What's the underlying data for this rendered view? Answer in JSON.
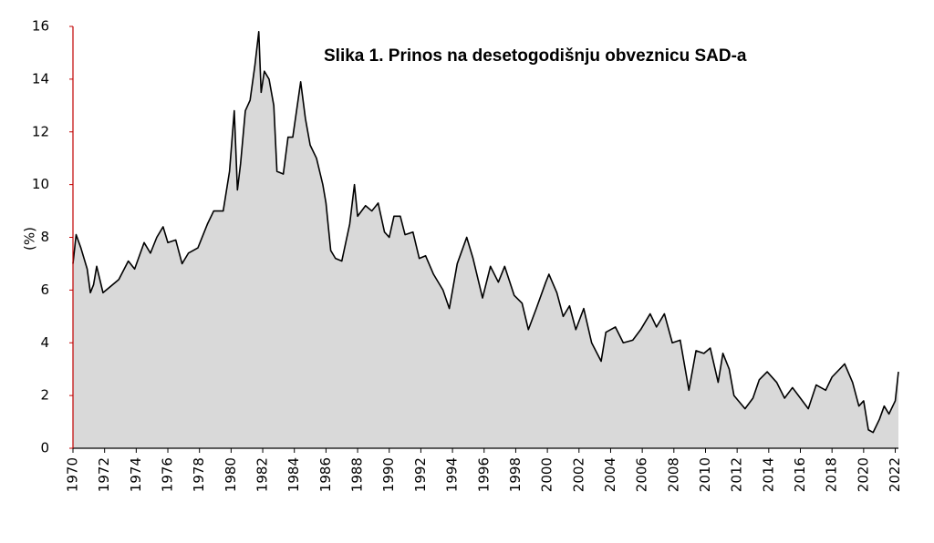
{
  "chart_data": {
    "type": "area",
    "title": "Slika 1. Prinos na desetogodišnju obveznicu SAD-a",
    "ylabel": "(%)",
    "x": [
      1970,
      1970.2,
      1970.5,
      1970.9,
      1971.1,
      1971.3,
      1971.5,
      1971.9,
      1972.3,
      1972.9,
      1973.5,
      1973.9,
      1974.5,
      1974.9,
      1975.3,
      1975.7,
      1976.0,
      1976.5,
      1976.9,
      1977.3,
      1977.9,
      1978.5,
      1978.9,
      1979.5,
      1979.9,
      1980.2,
      1980.4,
      1980.6,
      1980.9,
      1981.2,
      1981.5,
      1981.75,
      1981.9,
      1982.1,
      1982.4,
      1982.7,
      1982.9,
      1983.3,
      1983.6,
      1983.9,
      1984.4,
      1984.7,
      1985.0,
      1985.4,
      1985.8,
      1986.0,
      1986.3,
      1986.6,
      1987.0,
      1987.5,
      1987.8,
      1988.0,
      1988.5,
      1988.9,
      1989.3,
      1989.7,
      1990.0,
      1990.3,
      1990.7,
      1991.0,
      1991.5,
      1991.9,
      1992.3,
      1992.8,
      1993.4,
      1993.8,
      1994.3,
      1994.9,
      1995.3,
      1995.9,
      1996.4,
      1996.9,
      1997.3,
      1997.9,
      1998.4,
      1998.8,
      1999.3,
      1999.9,
      2000.1,
      2000.6,
      2001.0,
      2001.4,
      2001.8,
      2002.3,
      2002.8,
      2003.4,
      2003.7,
      2004.3,
      2004.8,
      2005.4,
      2005.9,
      2006.5,
      2006.9,
      2007.4,
      2007.9,
      2008.4,
      2008.95,
      2009.4,
      2009.9,
      2010.3,
      2010.8,
      2011.1,
      2011.5,
      2011.8,
      2012.5,
      2013.0,
      2013.4,
      2013.9,
      2014.5,
      2015.0,
      2015.5,
      2016.0,
      2016.5,
      2017.0,
      2017.6,
      2018.0,
      2018.8,
      2019.3,
      2019.7,
      2020.0,
      2020.3,
      2020.6,
      2021.0,
      2021.3,
      2021.6,
      2022.0,
      2022.2
    ],
    "values": [
      7.0,
      8.1,
      7.6,
      6.8,
      5.9,
      6.2,
      6.9,
      5.9,
      6.1,
      6.4,
      7.1,
      6.8,
      7.8,
      7.4,
      8.0,
      8.4,
      7.8,
      7.9,
      7.0,
      7.4,
      7.6,
      8.5,
      9.0,
      9.0,
      10.5,
      12.8,
      9.8,
      10.8,
      12.8,
      13.2,
      14.5,
      15.8,
      13.5,
      14.3,
      14.0,
      13.0,
      10.5,
      10.4,
      11.8,
      11.8,
      13.9,
      12.5,
      11.5,
      11.0,
      10.0,
      9.3,
      7.5,
      7.2,
      7.1,
      8.5,
      10.0,
      8.8,
      9.2,
      9.0,
      9.3,
      8.2,
      8.0,
      8.8,
      8.8,
      8.1,
      8.2,
      7.2,
      7.3,
      6.6,
      6.0,
      5.3,
      7.0,
      8.0,
      7.2,
      5.7,
      6.9,
      6.3,
      6.9,
      5.8,
      5.5,
      4.5,
      5.3,
      6.3,
      6.6,
      5.9,
      5.0,
      5.4,
      4.5,
      5.3,
      4.0,
      3.3,
      4.4,
      4.6,
      4.0,
      4.1,
      4.5,
      5.1,
      4.6,
      5.1,
      4.0,
      4.1,
      2.2,
      3.7,
      3.6,
      3.8,
      2.5,
      3.6,
      3.0,
      2.0,
      1.5,
      1.9,
      2.6,
      2.9,
      2.5,
      1.9,
      2.3,
      1.9,
      1.5,
      2.4,
      2.2,
      2.7,
      3.2,
      2.5,
      1.6,
      1.8,
      0.7,
      0.6,
      1.1,
      1.6,
      1.3,
      1.8,
      2.9
    ],
    "color": "#000000",
    "fill": "#d9d9d9",
    "xlim": [
      1970,
      2022.2
    ],
    "ylim": [
      0,
      16
    ],
    "xticks": [
      1970,
      1972,
      1974,
      1976,
      1978,
      1980,
      1982,
      1984,
      1986,
      1988,
      1990,
      1992,
      1994,
      1996,
      1998,
      2000,
      2002,
      2004,
      2006,
      2008,
      2010,
      2012,
      2014,
      2016,
      2018,
      2020,
      2022
    ],
    "yticks": [
      0,
      2,
      4,
      6,
      8,
      10,
      12,
      14,
      16
    ]
  }
}
